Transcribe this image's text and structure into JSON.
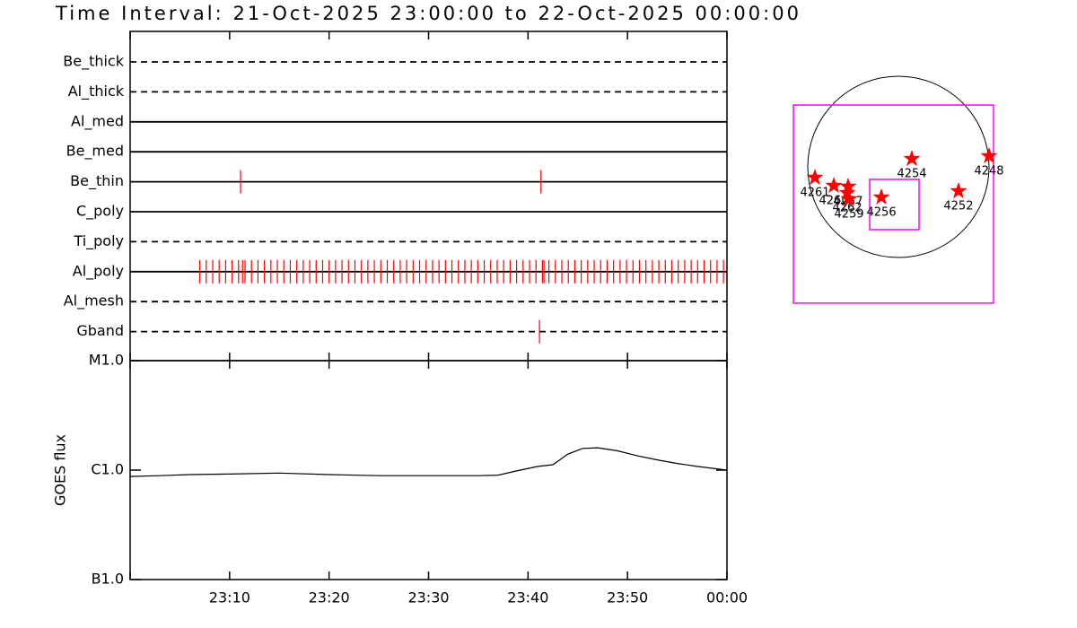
{
  "title": "Time Interval: 21-Oct-2025 23:00:00 to 22-Oct-2025 00:00:00",
  "chart_data": [
    {
      "type": "timeline",
      "xlim": [
        0,
        60
      ],
      "xticks": [
        {
          "value": 0,
          "label": ""
        },
        {
          "value": 10,
          "label": "23:10"
        },
        {
          "value": 20,
          "label": "23:20"
        },
        {
          "value": 30,
          "label": "23:30"
        },
        {
          "value": 40,
          "label": "23:40"
        },
        {
          "value": 50,
          "label": "23:50"
        },
        {
          "value": 60,
          "label": "00:00"
        }
      ],
      "event_color": "#ff0000",
      "rows": [
        {
          "name": "Be_thick",
          "style": "dashed",
          "events": []
        },
        {
          "name": "Al_thick",
          "style": "dashed",
          "events": []
        },
        {
          "name": "Al_med",
          "style": "solid",
          "events": []
        },
        {
          "name": "Be_med",
          "style": "solid",
          "events": []
        },
        {
          "name": "Be_thin",
          "style": "solid",
          "events": [
            11.1,
            41.3
          ]
        },
        {
          "name": "C_poly",
          "style": "solid",
          "events": []
        },
        {
          "name": "Ti_poly",
          "style": "dashed",
          "events": []
        },
        {
          "name": "Al_poly",
          "style": "solid",
          "events": [
            7.0,
            7.65,
            8.3,
            8.95,
            9.6,
            10.25,
            10.9,
            11.3,
            11.55,
            12.2,
            12.85,
            13.5,
            14.15,
            14.8,
            15.45,
            16.1,
            16.75,
            17.4,
            18.05,
            18.7,
            19.35,
            20.0,
            20.65,
            21.3,
            21.95,
            22.6,
            23.25,
            23.9,
            24.55,
            25.2,
            25.85,
            26.5,
            27.15,
            27.8,
            28.45,
            29.1,
            29.75,
            30.4,
            31.05,
            31.7,
            32.35,
            33.0,
            33.65,
            34.3,
            34.95,
            35.6,
            36.25,
            36.9,
            37.55,
            38.2,
            38.85,
            39.5,
            40.15,
            40.8,
            41.45,
            41.6,
            42.1,
            42.75,
            43.4,
            44.05,
            44.7,
            45.35,
            46.0,
            46.65,
            47.3,
            47.95,
            48.6,
            49.25,
            49.9,
            50.55,
            51.2,
            51.85,
            52.5,
            53.15,
            53.8,
            54.45,
            55.1,
            55.75,
            56.4,
            57.05,
            57.7,
            58.35,
            59.0,
            59.65
          ]
        },
        {
          "name": "Al_mesh",
          "style": "dashed",
          "events": []
        },
        {
          "name": "Gband",
          "style": "dashed",
          "events": [
            41.15
          ]
        }
      ]
    },
    {
      "type": "line",
      "ylabel": "GOES flux",
      "log_y": true,
      "color": "#000000",
      "xlim": [
        0,
        60
      ],
      "xticks": [
        {
          "value": 0,
          "label": ""
        },
        {
          "value": 10,
          "label": "23:10"
        },
        {
          "value": 20,
          "label": "23:20"
        },
        {
          "value": 30,
          "label": "23:30"
        },
        {
          "value": 40,
          "label": "23:40"
        },
        {
          "value": 50,
          "label": "23:50"
        },
        {
          "value": 60,
          "label": "00:00"
        }
      ],
      "ylim": [
        1e-07,
        1e-05
      ],
      "yticks": [
        {
          "value": 1e-07,
          "label": "B1.0"
        },
        {
          "value": 1e-06,
          "label": "C1.0"
        },
        {
          "value": 1e-05,
          "label": "M1.0"
        }
      ],
      "x": [
        0,
        3,
        6,
        10,
        15,
        20,
        25,
        30,
        35,
        37,
        39,
        41,
        42.5,
        44,
        45.5,
        47,
        49,
        51,
        53,
        55,
        57,
        60
      ],
      "values": [
        8.75e-07,
        8.9e-07,
        9.1e-07,
        9.2e-07,
        9.4e-07,
        9.1e-07,
        8.9e-07,
        8.9e-07,
        8.9e-07,
        9e-07,
        9.9e-07,
        1.08e-06,
        1.12e-06,
        1.4e-06,
        1.58e-06,
        1.6e-06,
        1.5e-06,
        1.35e-06,
        1.24e-06,
        1.15e-06,
        1.08e-06,
        1e-06
      ]
    },
    {
      "type": "map",
      "sun_radius": 970,
      "box_color": "#ff00ff",
      "star_color": "#ff0000",
      "boxes": [
        {
          "x": [
            -1123,
            1018
          ],
          "y": [
            -1459,
            662
          ]
        },
        {
          "x": [
            -307,
            221
          ],
          "y": [
            -672,
            -134
          ]
        }
      ],
      "regions": [
        {
          "label": "4261",
          "x": -893,
          "y": -115
        },
        {
          "label": "4260",
          "x": -691,
          "y": -202
        },
        {
          "label": "4257",
          "x": -538,
          "y": -211
        },
        {
          "label": "4262",
          "x": -547,
          "y": -278
        },
        {
          "label": "4259",
          "x": -528,
          "y": -346
        },
        {
          "label": "4256",
          "x": -182,
          "y": -326
        },
        {
          "label": "4254",
          "x": 144,
          "y": 86
        },
        {
          "label": "4252",
          "x": 643,
          "y": -259
        },
        {
          "label": "4248",
          "x": 970,
          "y": 115
        }
      ]
    }
  ]
}
